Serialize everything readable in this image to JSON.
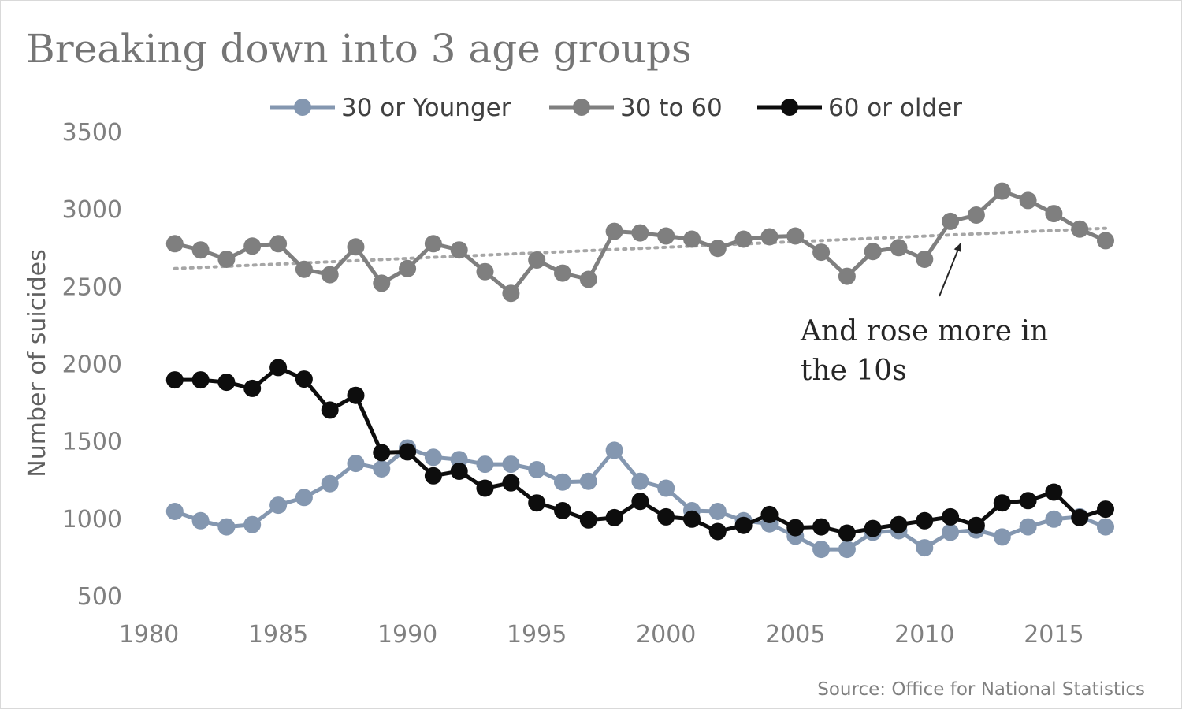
{
  "chart_data": {
    "type": "line",
    "title": "Breaking down into 3 age groups",
    "xlabel": "",
    "ylabel": "Number of suicides",
    "xlim": [
      1980,
      2018
    ],
    "ylim": [
      500,
      3500
    ],
    "x_ticks": [
      1980,
      1985,
      1990,
      1995,
      2000,
      2005,
      2010,
      2015
    ],
    "y_ticks": [
      500,
      1000,
      1500,
      2000,
      2500,
      3000,
      3500
    ],
    "grid": false,
    "legend_position": "top",
    "x": [
      1981,
      1982,
      1983,
      1984,
      1985,
      1986,
      1987,
      1988,
      1989,
      1990,
      1991,
      1992,
      1993,
      1994,
      1995,
      1996,
      1997,
      1998,
      1999,
      2000,
      2001,
      2002,
      2003,
      2004,
      2005,
      2006,
      2007,
      2008,
      2009,
      2010,
      2011,
      2012,
      2013,
      2014,
      2015,
      2016,
      2017
    ],
    "series": [
      {
        "name": "30 or Younger",
        "color": "#8497b0",
        "values": [
          1045,
          985,
          945,
          960,
          1085,
          1135,
          1225,
          1355,
          1320,
          1455,
          1395,
          1380,
          1350,
          1350,
          1315,
          1235,
          1240,
          1440,
          1240,
          1195,
          1050,
          1045,
          985,
          965,
          885,
          800,
          800,
          910,
          920,
          810,
          910,
          925,
          880,
          945,
          995,
          1010,
          945
        ]
      },
      {
        "name": "30 to 60",
        "color": "#7f7f7f",
        "values": [
          2775,
          2735,
          2675,
          2760,
          2775,
          2610,
          2575,
          2755,
          2520,
          2615,
          2775,
          2735,
          2595,
          2455,
          2670,
          2585,
          2545,
          2855,
          2845,
          2825,
          2805,
          2745,
          2805,
          2820,
          2825,
          2720,
          2565,
          2725,
          2750,
          2675,
          2920,
          2960,
          3115,
          3055,
          2970,
          2870,
          2795
        ]
      },
      {
        "name": "60 or older",
        "color": "#0d0d0d",
        "values": [
          1895,
          1895,
          1880,
          1840,
          1975,
          1900,
          1700,
          1795,
          1425,
          1430,
          1275,
          1305,
          1195,
          1230,
          1100,
          1050,
          990,
          1005,
          1110,
          1010,
          995,
          915,
          955,
          1025,
          940,
          945,
          905,
          935,
          960,
          985,
          1010,
          955,
          1100,
          1115,
          1170,
          1005,
          1060
        ]
      }
    ],
    "trendline": {
      "series": "30 to 60",
      "style": "dotted",
      "color": "#a6a6a6",
      "start": [
        1981,
        2615
      ],
      "end": [
        2017,
        2875
      ]
    },
    "annotation": {
      "lines": [
        "And rose more in",
        "the 10s"
      ],
      "arrow_target": [
        2011.5,
        2845
      ]
    },
    "source": "Source: Office for National Statistics"
  }
}
